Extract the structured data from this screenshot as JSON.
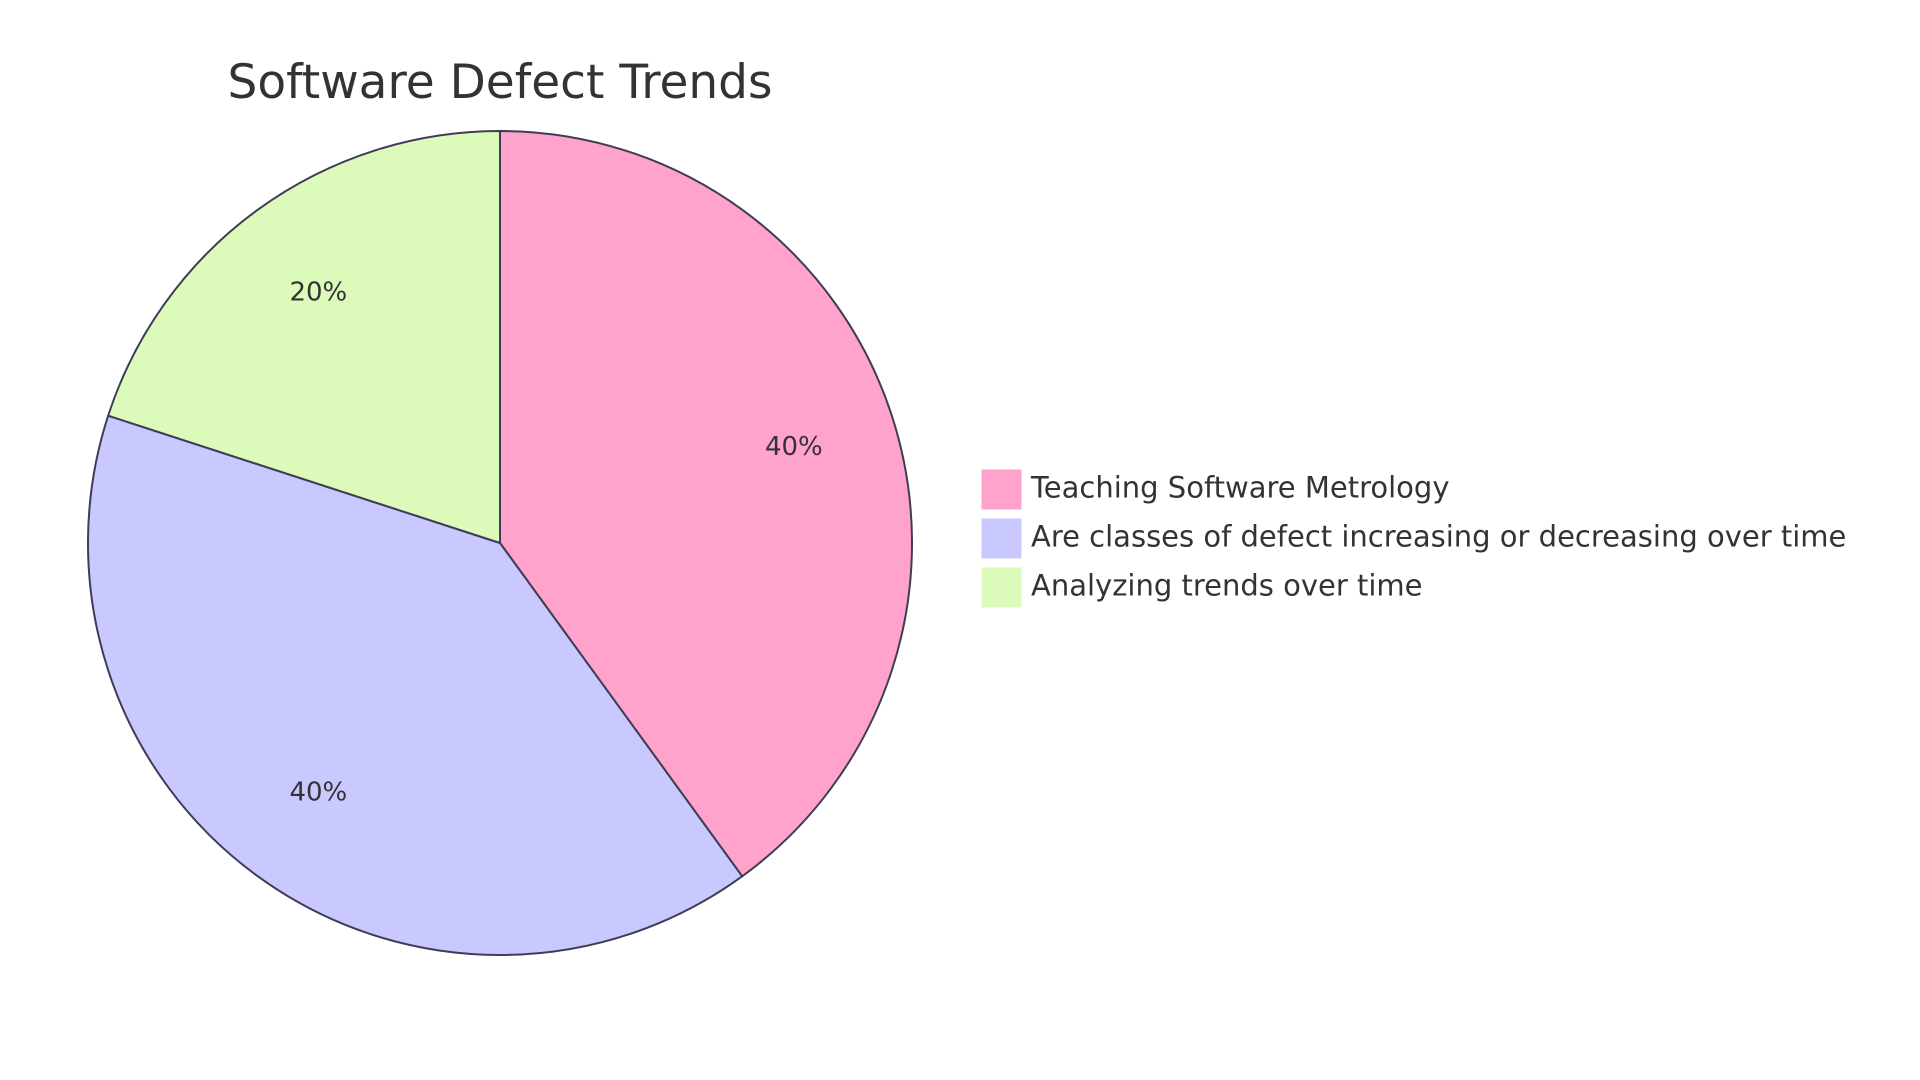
{
  "chart_data": {
    "type": "pie",
    "title": "Software Defect Trends",
    "slices": [
      {
        "name": "Teaching Software Metrology",
        "value": 40,
        "label": "40%",
        "color": "#ffa3cc"
      },
      {
        "name": "Are classes of defect increasing or decreasing over time",
        "value": 40,
        "label": "40%",
        "color": "#c9c9ff"
      },
      {
        "name": "Analyzing trends over time",
        "value": 20,
        "label": "20%",
        "color": "#dcfbbb"
      }
    ],
    "legend_position": "right",
    "outline_color": "#3f3d56"
  }
}
